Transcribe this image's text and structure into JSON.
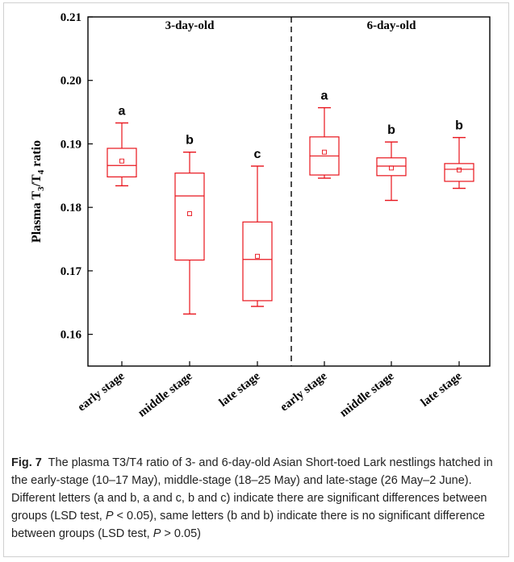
{
  "chart_data": {
    "type": "box",
    "ylabel_parts": [
      "Plasma T",
      "3",
      "/T",
      "4",
      " ratio"
    ],
    "ylim": [
      0.155,
      0.21
    ],
    "yticks": [
      "0.16",
      "0.17",
      "0.18",
      "0.19",
      "0.20",
      "0.21"
    ],
    "panels": [
      {
        "label": "3-day-old"
      },
      {
        "label": "6-day-old"
      }
    ],
    "categories": [
      "early stage",
      "middle stage",
      "late stage",
      "early stage",
      "middle stage",
      "late stage"
    ],
    "boxes": [
      {
        "min": 0.1834,
        "q1": 0.1848,
        "median": 0.1866,
        "q3": 0.1893,
        "max": 0.1933,
        "mean": 0.1873,
        "letter": "a"
      },
      {
        "min": 0.1632,
        "q1": 0.1717,
        "median": 0.1818,
        "q3": 0.1854,
        "max": 0.1887,
        "mean": 0.179,
        "letter": "b"
      },
      {
        "min": 0.1644,
        "q1": 0.1653,
        "median": 0.1718,
        "q3": 0.1777,
        "max": 0.1865,
        "mean": 0.1723,
        "letter": "c"
      },
      {
        "min": 0.1846,
        "q1": 0.1851,
        "median": 0.1881,
        "q3": 0.1911,
        "max": 0.1957,
        "mean": 0.1887,
        "letter": "a"
      },
      {
        "min": 0.1811,
        "q1": 0.185,
        "median": 0.1865,
        "q3": 0.1878,
        "max": 0.1903,
        "mean": 0.1862,
        "letter": "b"
      },
      {
        "min": 0.183,
        "q1": 0.1841,
        "median": 0.186,
        "q3": 0.1869,
        "max": 0.191,
        "mean": 0.1859,
        "letter": "b"
      }
    ],
    "color": "#e8141c"
  },
  "caption": {
    "fig_label": "Fig. 7",
    "text_1": "The plasma T3/T4 ratio of 3- and 6-day-old Asian Short-toed Lark nestlings hatched in the early-stage (10–17 May), middle-stage (18–25 May) and late-stage (26 May–2 June). Different letters (a and b, a and c, b and c) indicate there are significant differences between groups (LSD test, ",
    "p1": "P",
    "text_2": " < 0.05), same letters (b and b) indicate there is no significant difference between groups (LSD test, ",
    "p2": "P",
    "text_3": " > 0.05)"
  }
}
